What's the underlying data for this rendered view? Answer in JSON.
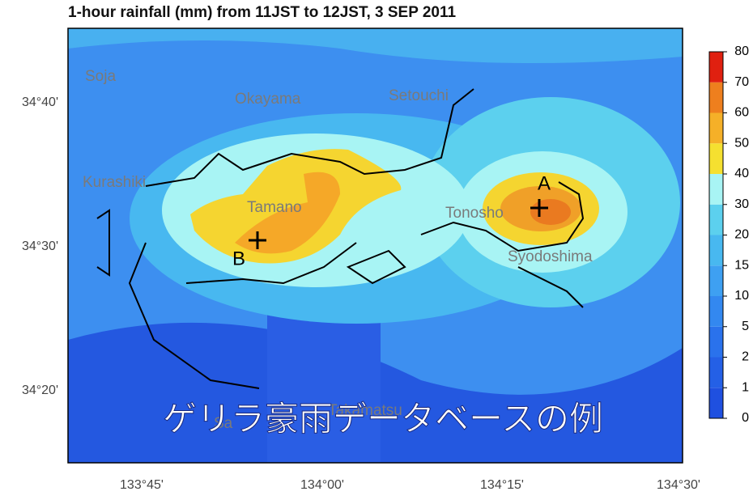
{
  "title": "1-hour rainfall (mm) from 11JST to 12JST, 3 SEP 2011",
  "latitude_labels": [
    "34°40'",
    "34°30'",
    "34°20'"
  ],
  "longitude_labels": [
    "133°45'",
    "134°00'",
    "134°15'",
    "134°30'"
  ],
  "places": [
    "Soja",
    "Okayama",
    "Setouchi",
    "Kurashiki",
    "Tamano",
    "Tonosho",
    "Syodoshima",
    "Sa",
    "Takamatsu"
  ],
  "markers": [
    "A",
    "B"
  ],
  "caption": "ゲリラ豪雨データベースの例",
  "colorbar": {
    "levels": [
      0,
      1,
      2,
      5,
      10,
      15,
      20,
      30,
      40,
      50,
      60,
      70,
      80
    ],
    "colors": [
      "#1f50e0",
      "#2460e6",
      "#2a72ec",
      "#3388f0",
      "#3ea0f2",
      "#48b8f0",
      "#5cd0ee",
      "#a8f4f4",
      "#f5e030",
      "#f5b028",
      "#ee7f1e",
      "#e02010"
    ]
  }
}
